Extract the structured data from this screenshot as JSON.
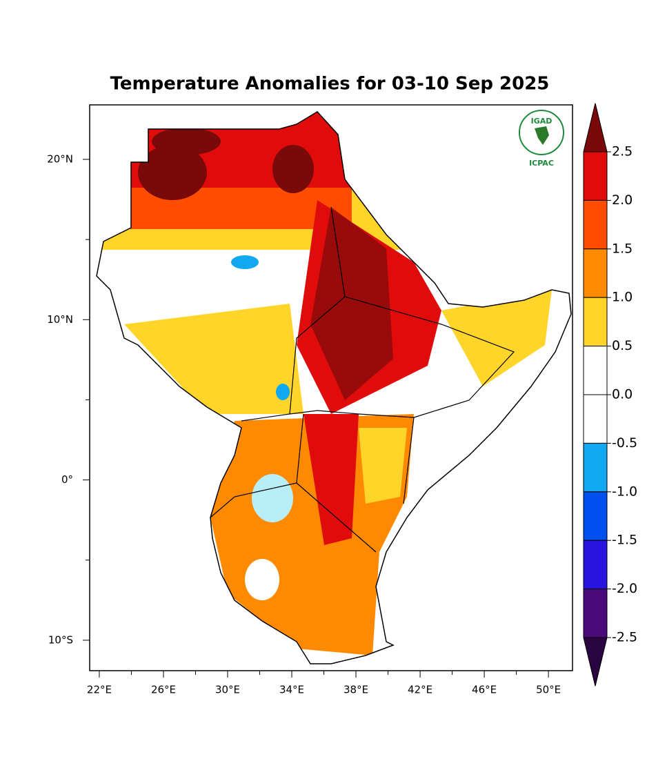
{
  "title": "Temperature Anomalies for 03-10 Sep 2025",
  "logo": {
    "top": "IGAD",
    "bottom": "ICPAC"
  },
  "map": {
    "lonlim": [
      21.4,
      51.5
    ],
    "latlim": [
      -11.9,
      23.4
    ],
    "lonticks": [
      {
        "value": 22,
        "label": "22°E"
      },
      {
        "value": 26,
        "label": "26°E"
      },
      {
        "value": 30,
        "label": "30°E"
      },
      {
        "value": 34,
        "label": "34°E"
      },
      {
        "value": 38,
        "label": "38°E"
      },
      {
        "value": 42,
        "label": "42°E"
      },
      {
        "value": 46,
        "label": "46°E"
      },
      {
        "value": 50,
        "label": "50°E"
      }
    ],
    "latticks": [
      {
        "value": 20,
        "label": "20°N"
      },
      {
        "value": 10,
        "label": "10°N"
      },
      {
        "value": 0,
        "label": "0°"
      },
      {
        "value": -10,
        "label": "10°S"
      }
    ]
  },
  "colorbar": {
    "levels": [
      {
        "value": 2.5,
        "label": "2.5"
      },
      {
        "value": 2,
        "label": "2.0"
      },
      {
        "value": 1.5,
        "label": "1.5"
      },
      {
        "value": 1,
        "label": "1.0"
      },
      {
        "value": 0.5,
        "label": "0.5"
      },
      {
        "value": 0,
        "label": "0.0"
      },
      {
        "value": -0.5,
        "label": "-0.5"
      },
      {
        "value": -1,
        "label": "-1.0"
      },
      {
        "value": -1.5,
        "label": "-1.5"
      },
      {
        "value": -2,
        "label": "-2.0"
      },
      {
        "value": -2.5,
        "label": "-2.5"
      }
    ],
    "colors": [
      "#7a0a0a",
      "#e00b0b",
      "#ff4d00",
      "#ff8a00",
      "#ffd52a",
      "#ffffff",
      "#ffffff",
      "#10a8f0",
      "#0050f0",
      "#2a14e0",
      "#4a0a7a",
      "#2a0540"
    ]
  }
}
